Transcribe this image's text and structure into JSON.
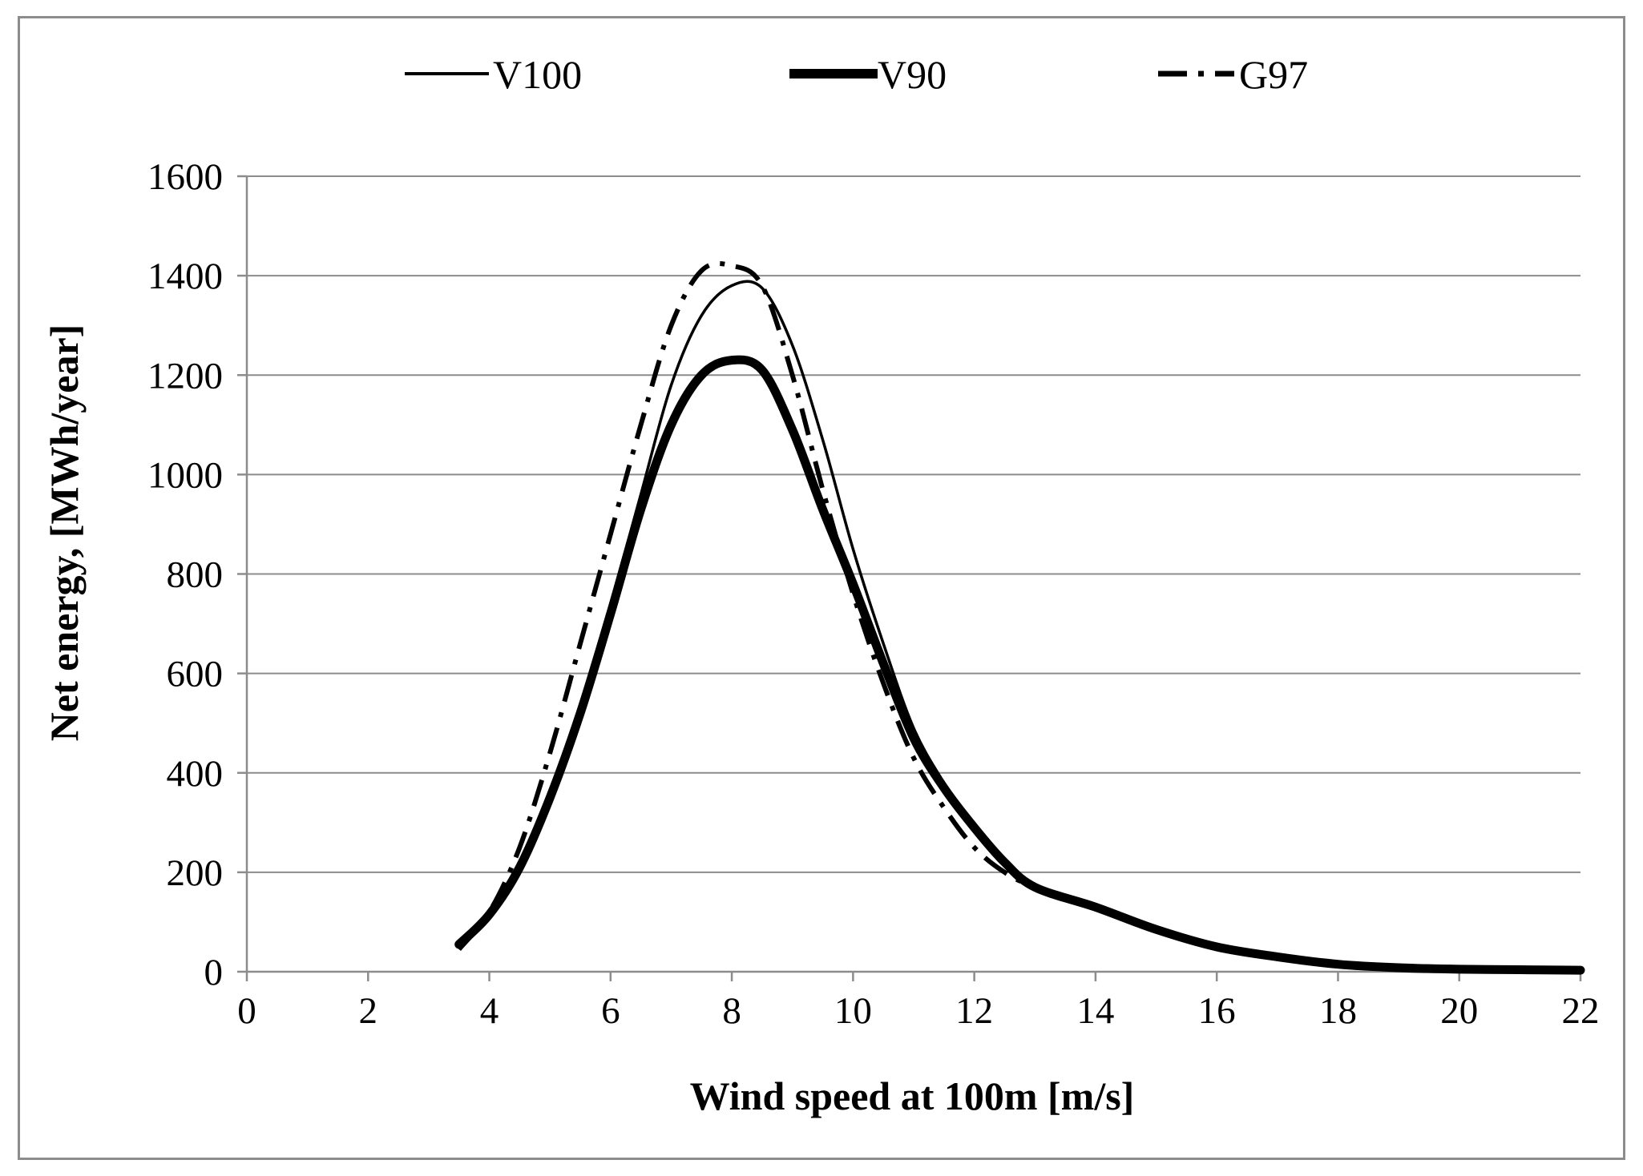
{
  "chart_data": {
    "type": "line",
    "title": "",
    "xlabel": "Wind speed at 100m [m/s]",
    "ylabel": "Net energy, [MWh/year]",
    "xlim": [
      0,
      22
    ],
    "ylim": [
      0,
      1600
    ],
    "xticks": [
      0,
      2,
      4,
      6,
      8,
      10,
      12,
      14,
      16,
      18,
      20,
      22
    ],
    "xtick_labels": [
      "0",
      "2",
      "4",
      "6",
      "8",
      "10",
      "12",
      "14",
      "16",
      "18",
      "20",
      "22"
    ],
    "yticks": [
      0,
      200,
      400,
      600,
      800,
      1000,
      1200,
      1400,
      1600
    ],
    "ytick_labels": [
      "0",
      "200",
      "400",
      "600",
      "800",
      "1000",
      "1200",
      "1400",
      "1600"
    ],
    "grid": "horizontal",
    "legend_position": "top",
    "series": [
      {
        "name": "V100",
        "style": "thin-solid",
        "color": "#000000",
        "x": [
          3.5,
          4,
          4.5,
          5,
          5.5,
          6,
          6.5,
          7,
          7.5,
          8,
          8.5,
          9,
          9.5,
          10,
          10.5,
          11,
          11.5,
          12,
          12.5,
          13,
          14,
          15,
          16,
          17,
          18,
          19,
          20,
          21,
          22
        ],
        "y": [
          55,
          120,
          220,
          360,
          530,
          740,
          960,
          1180,
          1320,
          1380,
          1375,
          1260,
          1070,
          850,
          660,
          490,
          380,
          290,
          220,
          170,
          130,
          85,
          50,
          30,
          15,
          8,
          5,
          4,
          3
        ]
      },
      {
        "name": "V90",
        "style": "thick-solid",
        "color": "#000000",
        "x": [
          3.5,
          4,
          4.5,
          5,
          5.5,
          6,
          6.5,
          7,
          7.5,
          8,
          8.5,
          9,
          9.5,
          10,
          10.5,
          11,
          11.5,
          12,
          12.5,
          13,
          14,
          15,
          16,
          17,
          18,
          19,
          20,
          21,
          22
        ],
        "y": [
          55,
          115,
          210,
          350,
          520,
          720,
          930,
          1100,
          1200,
          1230,
          1210,
          1090,
          930,
          780,
          620,
          470,
          370,
          290,
          220,
          170,
          130,
          85,
          50,
          30,
          15,
          8,
          5,
          4,
          3
        ]
      },
      {
        "name": "G97",
        "style": "dash-dot",
        "color": "#000000",
        "x": [
          3.5,
          4,
          4.5,
          5,
          5.5,
          6,
          6.5,
          7,
          7.5,
          8,
          8.5,
          9,
          9.5,
          10,
          10.5,
          11,
          11.5,
          12,
          12.5,
          13,
          14,
          15,
          16,
          17,
          18,
          19,
          20,
          21,
          22
        ],
        "y": [
          45,
          120,
          250,
          440,
          660,
          880,
          1100,
          1300,
          1410,
          1420,
          1380,
          1200,
          970,
          760,
          580,
          430,
          330,
          250,
          200,
          170,
          130,
          85,
          50,
          30,
          15,
          8,
          5,
          4,
          3
        ]
      }
    ]
  }
}
